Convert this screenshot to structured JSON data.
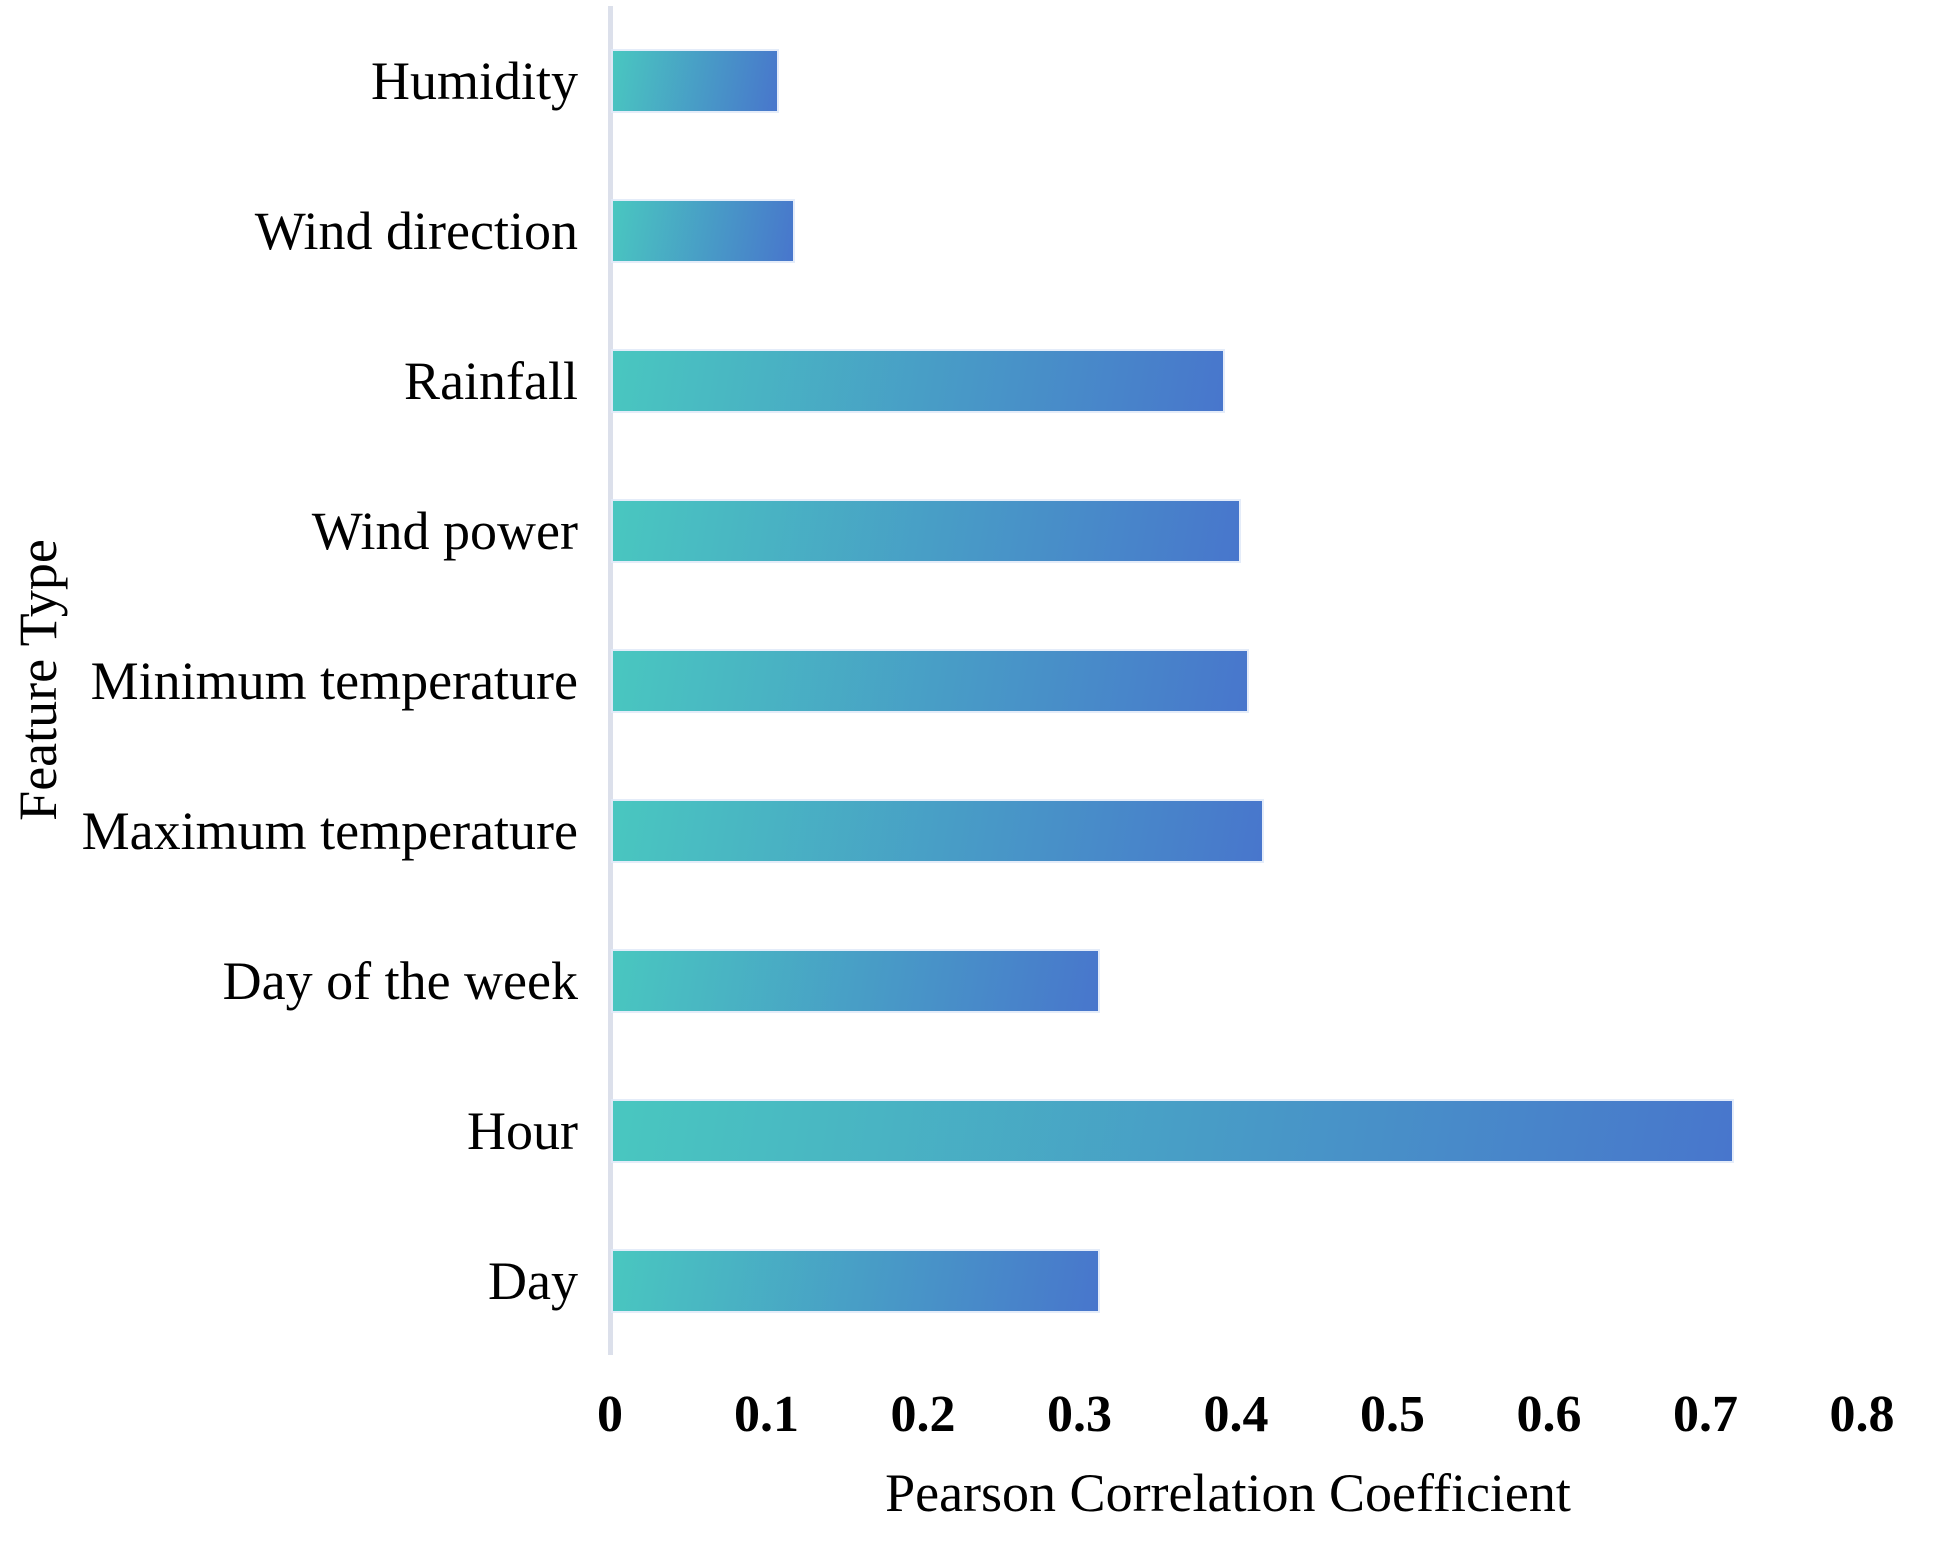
{
  "figure": {
    "background": "#FFFFFF"
  },
  "chart_data": {
    "type": "bar",
    "orientation": "horizontal",
    "xlabel": "Pearson Correlation Coefficient",
    "ylabel": "Feature Type",
    "categories": [
      "Humidity",
      "Wind direction",
      "Rainfall",
      "Wind power",
      "Minimum temperature",
      "Maximum temperature",
      "Day of the week",
      "Hour",
      "Day"
    ],
    "values": [
      0.105,
      0.115,
      0.39,
      0.4,
      0.405,
      0.415,
      0.31,
      0.715,
      0.31
    ],
    "xlim": [
      0,
      0.8
    ],
    "xtick_labels": [
      "0",
      "0.1",
      "0.2",
      "0.3",
      "0.4",
      "0.5",
      "0.6",
      "0.7",
      "0.8"
    ],
    "grid": false,
    "legend_position": "none",
    "colors": {
      "bar_gradient_start": "#49C7C0",
      "bar_gradient_end": "#4876CC",
      "axis_line": "#DCE0EB",
      "text": "#000000"
    }
  }
}
